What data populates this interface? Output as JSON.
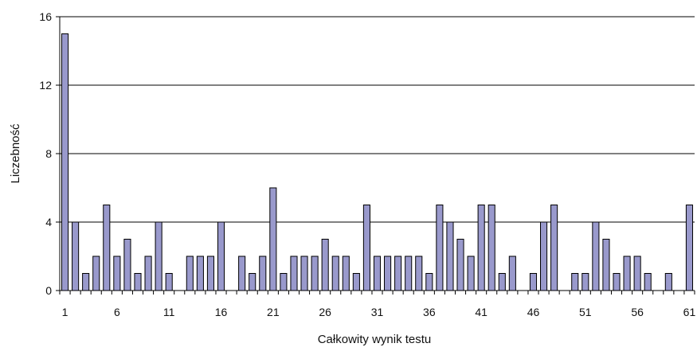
{
  "colors": {
    "bar_fill": "#9999CC",
    "bar_stroke": "#000000",
    "grid": "#000000",
    "axis": "#000000",
    "background": "#FFFFFF"
  },
  "chart_data": {
    "type": "bar",
    "title": "",
    "xlabel": "Całkowity wynik testu",
    "ylabel": "Liczebność",
    "ylim": [
      0,
      16
    ],
    "yticks": [
      0,
      4,
      8,
      12,
      16
    ],
    "xtick_labels": [
      "1",
      "6",
      "11",
      "16",
      "21",
      "26",
      "31",
      "36",
      "41",
      "46",
      "51",
      "56",
      "61"
    ],
    "grid": true,
    "legend": "none",
    "x": [
      1,
      2,
      3,
      4,
      5,
      6,
      7,
      8,
      9,
      10,
      11,
      12,
      13,
      14,
      15,
      16,
      17,
      18,
      19,
      20,
      21,
      22,
      23,
      24,
      25,
      26,
      27,
      28,
      29,
      30,
      31,
      32,
      33,
      34,
      35,
      36,
      37,
      38,
      39,
      40,
      41,
      42,
      43,
      44,
      45,
      46,
      47,
      48,
      49,
      50,
      51,
      52,
      53,
      54,
      55,
      56,
      57,
      58,
      59,
      60,
      61
    ],
    "values": [
      15,
      4,
      1,
      2,
      5,
      2,
      3,
      1,
      2,
      4,
      1,
      0,
      2,
      2,
      2,
      4,
      0,
      2,
      1,
      2,
      6,
      1,
      2,
      2,
      2,
      3,
      2,
      2,
      1,
      5,
      2,
      2,
      2,
      2,
      2,
      1,
      5,
      4,
      3,
      2,
      5,
      5,
      1,
      2,
      0,
      1,
      4,
      5,
      0,
      1,
      1,
      4,
      3,
      1,
      2,
      2,
      1,
      0,
      1,
      0,
      5
    ]
  }
}
